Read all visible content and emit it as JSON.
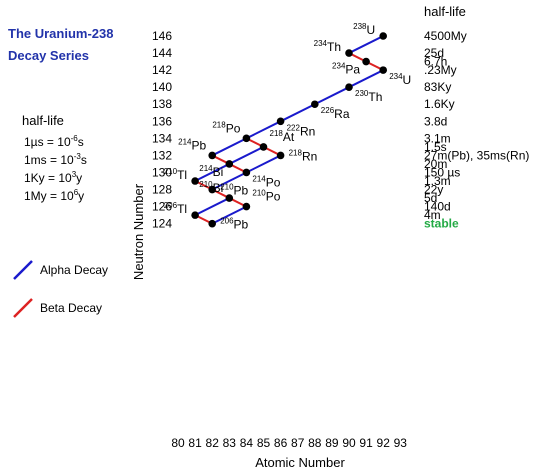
{
  "chart_data": {
    "type": "line",
    "title_lines": [
      "The Uranium-238",
      "Decay Series"
    ],
    "xlabel": "Atomic Number",
    "ylabel": "Neutron Number",
    "xlim": [
      80,
      93
    ],
    "ylim": [
      123,
      147
    ],
    "x_ticks": [
      80,
      81,
      82,
      83,
      84,
      85,
      86,
      87,
      88,
      89,
      90,
      91,
      92,
      93
    ],
    "y_ticks": [
      124,
      126,
      128,
      130,
      132,
      134,
      136,
      138,
      140,
      142,
      144,
      146
    ],
    "units_note": {
      "heading": "half-life",
      "lines": [
        {
          "base": "1µs = 10",
          "exp": "-6",
          "unit": "s"
        },
        {
          "base": "1ms = 10",
          "exp": "-3",
          "unit": "s"
        },
        {
          "base": "1Ky = 10",
          "exp": "3",
          "unit": "y"
        },
        {
          "base": "1My = 10",
          "exp": "6",
          "unit": "y"
        }
      ]
    },
    "legend": [
      {
        "label": "Alpha Decay",
        "color": "#1a1acc"
      },
      {
        "label": "Beta Decay",
        "color": "#dd2222"
      }
    ],
    "nuclides": [
      {
        "mass": "238",
        "sym": "U",
        "Z": 92,
        "N": 146,
        "label_pos": "left"
      },
      {
        "mass": "234",
        "sym": "Th",
        "Z": 90,
        "N": 144,
        "label_pos": "left"
      },
      {
        "mass": "234",
        "sym": "Pa",
        "Z": 91,
        "N": 143,
        "label_pos": "belowleft"
      },
      {
        "mass": "234",
        "sym": "U",
        "Z": 92,
        "N": 142,
        "label_pos": "belowright"
      },
      {
        "mass": "230",
        "sym": "Th",
        "Z": 90,
        "N": 140,
        "label_pos": "belowright"
      },
      {
        "mass": "226",
        "sym": "Ra",
        "Z": 88,
        "N": 138,
        "label_pos": "belowright"
      },
      {
        "mass": "222",
        "sym": "Rn",
        "Z": 86,
        "N": 136,
        "label_pos": "belowright"
      },
      {
        "mass": "218",
        "sym": "Po",
        "Z": 84,
        "N": 134,
        "label_pos": "aboveleft"
      },
      {
        "mass": "218",
        "sym": "At",
        "Z": 85,
        "N": 133,
        "label_pos": "aboveright"
      },
      {
        "mass": "218",
        "sym": "Rn",
        "Z": 86,
        "N": 132,
        "label_pos": "right"
      },
      {
        "mass": "214",
        "sym": "Pb",
        "Z": 82,
        "N": 132,
        "label_pos": "aboveleft"
      },
      {
        "mass": "214",
        "sym": "Bi",
        "Z": 83,
        "N": 131,
        "label_pos": "belowleft"
      },
      {
        "mass": "214",
        "sym": "Po",
        "Z": 84,
        "N": 130,
        "label_pos": "belowright"
      },
      {
        "mass": "210",
        "sym": "Tl",
        "Z": 81,
        "N": 129,
        "label_pos": "left"
      },
      {
        "mass": "210",
        "sym": "Pb",
        "Z": 82,
        "N": 128,
        "label_pos": "right"
      },
      {
        "mass": "210",
        "sym": "Bi",
        "Z": 83,
        "N": 127,
        "label_pos": "aboveleft"
      },
      {
        "mass": "210",
        "sym": "Po",
        "Z": 84,
        "N": 126,
        "label_pos": "aboveright"
      },
      {
        "mass": "206",
        "sym": "Tl",
        "Z": 81,
        "N": 125,
        "label_pos": "left"
      },
      {
        "mass": "206",
        "sym": "Pb",
        "Z": 82,
        "N": 124,
        "label_pos": "right"
      }
    ],
    "decays": [
      {
        "from": [
          92,
          146
        ],
        "to": [
          90,
          144
        ],
        "type": "alpha"
      },
      {
        "from": [
          90,
          144
        ],
        "to": [
          91,
          143
        ],
        "type": "beta"
      },
      {
        "from": [
          91,
          143
        ],
        "to": [
          92,
          142
        ],
        "type": "beta"
      },
      {
        "from": [
          92,
          142
        ],
        "to": [
          90,
          140
        ],
        "type": "alpha"
      },
      {
        "from": [
          90,
          140
        ],
        "to": [
          88,
          138
        ],
        "type": "alpha"
      },
      {
        "from": [
          88,
          138
        ],
        "to": [
          86,
          136
        ],
        "type": "alpha"
      },
      {
        "from": [
          86,
          136
        ],
        "to": [
          84,
          134
        ],
        "type": "alpha"
      },
      {
        "from": [
          84,
          134
        ],
        "to": [
          85,
          133
        ],
        "type": "beta"
      },
      {
        "from": [
          85,
          133
        ],
        "to": [
          86,
          132
        ],
        "type": "beta"
      },
      {
        "from": [
          84,
          134
        ],
        "to": [
          82,
          132
        ],
        "type": "alpha"
      },
      {
        "from": [
          85,
          133
        ],
        "to": [
          83,
          131
        ],
        "type": "alpha"
      },
      {
        "from": [
          86,
          132
        ],
        "to": [
          84,
          130
        ],
        "type": "alpha"
      },
      {
        "from": [
          82,
          132
        ],
        "to": [
          83,
          131
        ],
        "type": "beta"
      },
      {
        "from": [
          83,
          131
        ],
        "to": [
          84,
          130
        ],
        "type": "beta"
      },
      {
        "from": [
          83,
          131
        ],
        "to": [
          81,
          129
        ],
        "type": "alpha"
      },
      {
        "from": [
          84,
          130
        ],
        "to": [
          82,
          128
        ],
        "type": "alpha"
      },
      {
        "from": [
          81,
          129
        ],
        "to": [
          82,
          128
        ],
        "type": "beta"
      },
      {
        "from": [
          82,
          128
        ],
        "to": [
          83,
          127
        ],
        "type": "beta"
      },
      {
        "from": [
          83,
          127
        ],
        "to": [
          84,
          126
        ],
        "type": "beta"
      },
      {
        "from": [
          83,
          127
        ],
        "to": [
          81,
          125
        ],
        "type": "alpha"
      },
      {
        "from": [
          84,
          126
        ],
        "to": [
          82,
          124
        ],
        "type": "alpha"
      },
      {
        "from": [
          81,
          125
        ],
        "to": [
          82,
          124
        ],
        "type": "beta"
      }
    ],
    "half_life_heading": "half-life",
    "half_lives": [
      {
        "N": 146,
        "text": "4500My"
      },
      {
        "N": 144,
        "text": "25d"
      },
      {
        "N": 143,
        "text": "6.7h"
      },
      {
        "N": 142,
        "text": ".23My"
      },
      {
        "N": 140,
        "text": "83Ky"
      },
      {
        "N": 138,
        "text": "1.6Ky"
      },
      {
        "N": 136,
        "text": "3.8d"
      },
      {
        "N": 134,
        "text": "3.1m"
      },
      {
        "N": 133,
        "text": "1.5s"
      },
      {
        "N": 132,
        "text": "27m(Pb), 35ms(Rn)"
      },
      {
        "N": 131,
        "text": "20m"
      },
      {
        "N": 130,
        "text": "150 µs"
      },
      {
        "N": 129,
        "text": "1.3m"
      },
      {
        "N": 128,
        "text": "22y"
      },
      {
        "N": 127,
        "text": "5d"
      },
      {
        "N": 126,
        "text": "140d"
      },
      {
        "N": 125,
        "text": "4m"
      },
      {
        "N": 124,
        "text": "stable",
        "stable": true
      }
    ],
    "colors": {
      "alpha": "#1a1acc",
      "beta": "#dd2222",
      "point": "#000000",
      "title": "#2233aa",
      "stable": "#22aa44"
    }
  }
}
